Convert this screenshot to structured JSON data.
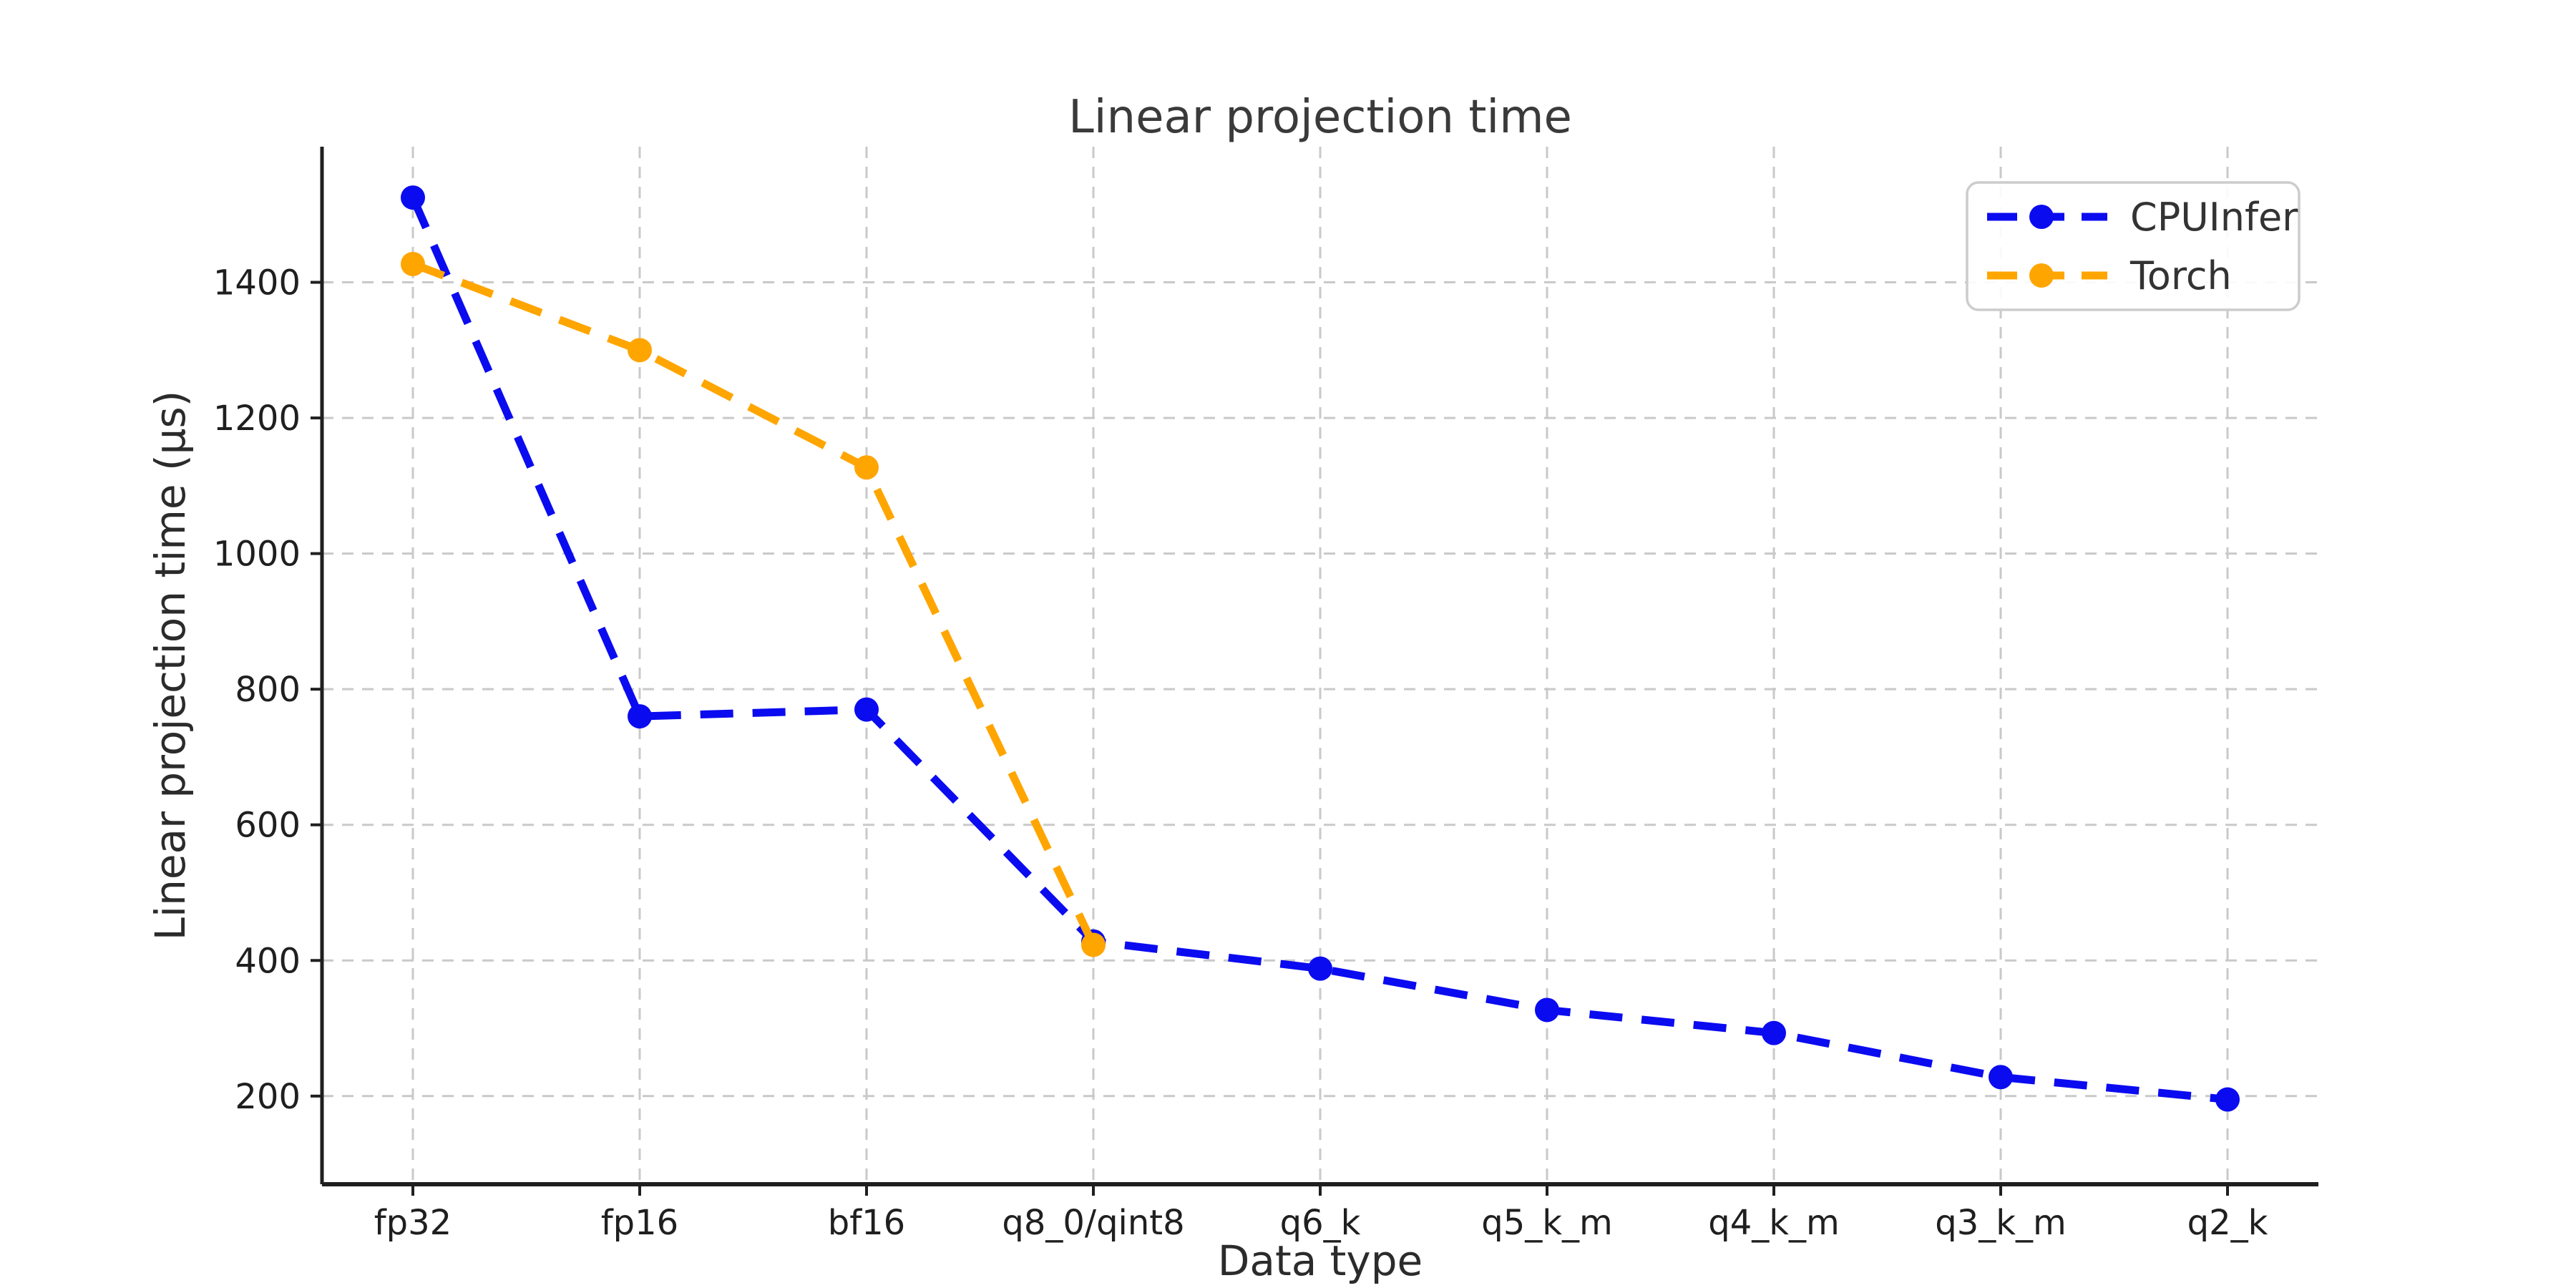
{
  "title": "Linear projection time",
  "axes": {
    "xlabel": "Data type",
    "ylabel": "Linear projection time (μs)"
  },
  "legend": {
    "position": "upper right",
    "items": [
      {
        "label": "CPUInfer",
        "color": "#0b0bf0"
      },
      {
        "label": "Torch",
        "color": "#ffa500"
      }
    ]
  },
  "colors": {
    "cpuinfer": "#0b0bf0",
    "torch": "#ffa500",
    "grid": "#c9c9c9",
    "spine": "#1f1f1f",
    "tick_text": "#1f1f1f",
    "background": "#ffffff",
    "legend_border": "#cccccc"
  },
  "chart_data": {
    "type": "line",
    "title": "Linear projection time",
    "xlabel": "Data type",
    "ylabel": "Linear projection time (μs)",
    "categories": [
      "fp32",
      "fp16",
      "bf16",
      "q8_0/qint8",
      "q6_k",
      "q5_k_m",
      "q4_k_m",
      "q3_k_m",
      "q2_k"
    ],
    "series": [
      {
        "name": "CPUInfer",
        "color": "#0b0bf0",
        "linestyle": "dashed",
        "marker": "circle",
        "values": [
          1525,
          760,
          770,
          428,
          388,
          327,
          293,
          228,
          195
        ]
      },
      {
        "name": "Torch",
        "color": "#ffa500",
        "linestyle": "dashed",
        "marker": "circle",
        "values": [
          1427,
          1300,
          1127,
          423,
          null,
          null,
          null,
          null,
          null
        ]
      }
    ],
    "yticks": [
      200,
      400,
      600,
      800,
      1000,
      1200,
      1400
    ],
    "ylim": [
      70,
      1600
    ],
    "grid": true,
    "legend_position": "upper right"
  }
}
